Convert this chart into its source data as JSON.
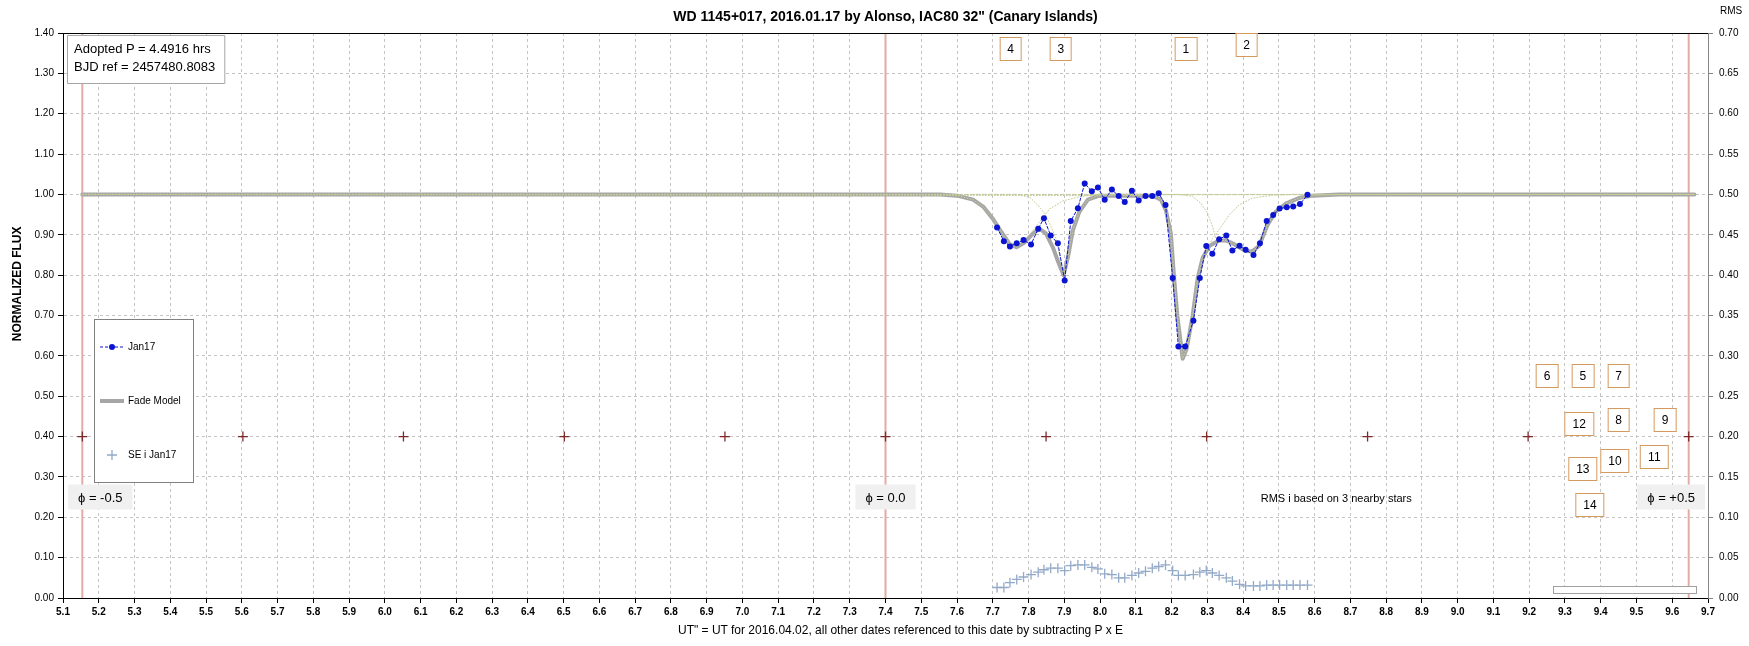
{
  "chart_data": {
    "type": "line",
    "title": "WD 1145+017, 2016.01.17 by Alonso, IAC80 32\" (Canary Islands)",
    "xlabel": "UT\" = UT for 2016.04.02, all other dates referenced to this date by subtracting P x E",
    "ylabel": "NORMALIZED FLUX",
    "y2label": "RMS",
    "x": [
      7.712,
      7.731,
      7.748,
      7.767,
      7.786,
      7.807,
      7.827,
      7.843,
      7.862,
      7.882,
      7.901,
      7.918,
      7.938,
      7.957,
      7.977,
      7.994,
      8.013,
      8.033,
      8.052,
      8.069,
      8.089,
      8.108,
      8.127,
      8.146,
      8.164,
      8.183,
      8.203,
      8.219,
      8.238,
      8.261,
      8.279,
      8.297,
      8.314,
      8.333,
      8.353,
      8.37,
      8.39,
      8.407,
      8.429,
      8.447,
      8.466,
      8.484,
      8.502,
      8.522,
      8.54,
      8.559,
      8.58
    ],
    "series": [
      {
        "name": "Jan17",
        "color": "#0a14d2",
        "marker": "circle",
        "line_style": "dashed",
        "values": [
          0.918,
          0.884,
          0.871,
          0.879,
          0.887,
          0.876,
          0.915,
          0.941,
          0.898,
          0.879,
          0.787,
          0.934,
          0.966,
          1.027,
          1.008,
          1.017,
          0.987,
          1.012,
          0.996,
          0.981,
          1.009,
          0.985,
          0.996,
          0.996,
          1.003,
          0.974,
          0.793,
          0.623,
          0.623,
          0.687,
          0.793,
          0.872,
          0.853,
          0.889,
          0.898,
          0.861,
          0.873,
          0.863,
          0.85,
          0.879,
          0.934,
          0.949,
          0.965,
          0.968,
          0.97,
          0.976,
          0.999
        ]
      },
      {
        "color": "#c5cc98",
        "marker": "none",
        "line_style": "dotted",
        "x": [
          5.154,
          7.552,
          7.6,
          7.645,
          7.673,
          7.7,
          7.724,
          7.747,
          7.766,
          7.789,
          7.812,
          7.831,
          7.859,
          7.896,
          7.942,
          7.99,
          9.662
        ],
        "values": [
          1.0,
          1.0,
          0.997,
          0.987,
          0.97,
          0.94,
          0.907,
          0.877,
          0.869,
          0.888,
          0.91,
          0.932,
          0.964,
          0.984,
          0.994,
          1.0,
          1.0
        ]
      },
      {
        "color": "#c5cc98",
        "marker": "none",
        "line_style": "dotted",
        "x": [
          5.154,
          7.766,
          7.803,
          7.826,
          7.845,
          7.863,
          7.877,
          7.898,
          7.91,
          7.924,
          7.942,
          7.966,
          8.0,
          9.662
        ],
        "values": [
          1.0,
          1.0,
          0.993,
          0.974,
          0.953,
          0.92,
          0.89,
          0.8,
          0.844,
          0.911,
          0.957,
          0.987,
          0.999,
          1.0
        ]
      },
      {
        "color": "#c5cc98",
        "marker": "none",
        "line_style": "dotted",
        "x": [
          5.154,
          8.147,
          8.17,
          8.184,
          8.198,
          8.207,
          8.216,
          8.231,
          8.242,
          8.259,
          8.273,
          8.287,
          8.314,
          8.338,
          8.361,
          8.389,
          8.426,
          8.482,
          8.538,
          9.662
        ],
        "values": [
          1.0,
          0.997,
          0.987,
          0.961,
          0.903,
          0.793,
          0.7,
          0.593,
          0.617,
          0.7,
          0.793,
          0.843,
          0.89,
          0.919,
          0.949,
          0.974,
          0.991,
          0.998,
          1.0,
          1.0
        ]
      },
      {
        "color": "#c5cc98",
        "marker": "none",
        "line_style": "dotted",
        "x": [
          5.154,
          8.221,
          8.259,
          8.282,
          8.301,
          8.315,
          8.324,
          8.333,
          8.352,
          8.37,
          8.389,
          8.407,
          8.426,
          8.445,
          8.468,
          8.491,
          8.519,
          8.556,
          8.593,
          8.668,
          9.662
        ],
        "values": [
          1.0,
          1.0,
          0.995,
          0.978,
          0.953,
          0.919,
          0.89,
          0.886,
          0.886,
          0.879,
          0.869,
          0.86,
          0.859,
          0.873,
          0.924,
          0.957,
          0.977,
          0.991,
          0.997,
          1.0,
          1.0
        ]
      },
      {
        "name": "Fade Model",
        "color": "#a6a6a6",
        "marker": "none",
        "line_style": "solid",
        "x": [
          5.154,
          7.552,
          7.6,
          7.645,
          7.673,
          7.7,
          7.724,
          7.747,
          7.766,
          7.789,
          7.812,
          7.831,
          7.849,
          7.868,
          7.882,
          7.898,
          7.91,
          7.924,
          7.942,
          7.966,
          7.998,
          8.147,
          8.17,
          8.184,
          8.198,
          8.207,
          8.216,
          8.231,
          8.242,
          8.259,
          8.273,
          8.287,
          8.306,
          8.333,
          8.352,
          8.37,
          8.389,
          8.407,
          8.426,
          8.445,
          8.468,
          8.491,
          8.519,
          8.556,
          8.593,
          8.668,
          9.662
        ],
        "values": [
          1.0,
          1.0,
          0.997,
          0.987,
          0.97,
          0.94,
          0.907,
          0.877,
          0.869,
          0.881,
          0.903,
          0.915,
          0.903,
          0.869,
          0.835,
          0.8,
          0.844,
          0.911,
          0.957,
          0.987,
          0.997,
          0.997,
          0.987,
          0.961,
          0.903,
          0.793,
          0.7,
          0.593,
          0.617,
          0.7,
          0.793,
          0.843,
          0.873,
          0.886,
          0.886,
          0.879,
          0.869,
          0.86,
          0.859,
          0.873,
          0.924,
          0.957,
          0.977,
          0.991,
          0.997,
          1.0,
          1.0
        ]
      },
      {
        "name": "SE i Jan17",
        "type": "scatter",
        "color": "#93a9c8",
        "marker": "cross",
        "axis": "y2",
        "values": [
          0.013,
          0.013,
          0.019,
          0.023,
          0.026,
          0.029,
          0.032,
          0.035,
          0.037,
          0.037,
          0.034,
          0.04,
          0.041,
          0.041,
          0.038,
          0.036,
          0.03,
          0.029,
          0.025,
          0.025,
          0.028,
          0.031,
          0.033,
          0.037,
          0.039,
          0.041,
          0.034,
          0.028,
          0.028,
          0.029,
          0.032,
          0.034,
          0.031,
          0.028,
          0.025,
          0.021,
          0.017,
          0.015,
          0.015,
          0.015,
          0.016,
          0.016,
          0.016,
          0.016,
          0.016,
          0.016,
          0.016
        ]
      },
      {
        "type": "scatter",
        "color": "#7f2a2a",
        "marker": "cross",
        "x": [
          5.154,
          5.603,
          6.052,
          6.502,
          6.951,
          7.4,
          7.849,
          8.298,
          8.748,
          9.197,
          9.646
        ],
        "values": [
          0.4,
          0.4,
          0.4,
          0.4,
          0.4,
          0.4,
          0.4,
          0.4,
          0.4,
          0.4,
          0.4
        ]
      }
    ],
    "xlim": [
      5.1,
      9.7
    ],
    "ylim": [
      0,
      1.4
    ],
    "y2lim": [
      0,
      0.7
    ],
    "xticks": [
      5.1,
      5.2,
      5.3,
      5.4,
      5.5,
      5.6,
      5.7,
      5.8,
      5.9,
      {
        "value": 6,
        "label": "6.0"
      },
      6.1,
      6.2,
      6.3,
      6.4,
      6.5,
      6.6,
      6.7,
      6.8,
      6.9,
      {
        "value": 7,
        "label": "7.0"
      },
      7.1,
      7.2,
      7.3,
      7.4,
      7.5,
      7.6,
      7.7,
      7.8,
      7.9,
      {
        "value": 8,
        "label": "8.0"
      },
      8.1,
      8.2,
      8.3,
      8.4,
      8.5,
      8.6,
      8.7,
      8.8,
      8.9,
      {
        "value": 9,
        "label": "9.0"
      },
      9.1,
      9.2,
      9.3,
      9.4,
      9.5,
      9.6,
      9.7
    ],
    "yticks": [
      {
        "value": 0,
        "label": "0.00"
      },
      {
        "value": 0.1,
        "label": "0.10"
      },
      {
        "value": 0.2,
        "label": "0.20"
      },
      {
        "value": 0.3,
        "label": "0.30"
      },
      {
        "value": 0.4,
        "label": "0.40"
      },
      {
        "value": 0.5,
        "label": "0.50"
      },
      {
        "value": 0.6,
        "label": "0.60"
      },
      {
        "value": 0.7,
        "label": "0.70"
      },
      {
        "value": 0.8,
        "label": "0.80"
      },
      {
        "value": 0.9,
        "label": "0.90"
      },
      {
        "value": 1,
        "label": "1.00"
      },
      {
        "value": 1.1,
        "label": "1.10"
      },
      {
        "value": 1.2,
        "label": "1.20"
      },
      {
        "value": 1.3,
        "label": "1.30"
      },
      {
        "value": 1.4,
        "label": "1.40"
      }
    ],
    "y2ticks": [
      {
        "value": 0,
        "label": "0.00"
      },
      0.05,
      {
        "value": 0.1,
        "label": "0.10"
      },
      0.15,
      {
        "value": 0.2,
        "label": "0.20"
      },
      0.25,
      {
        "value": 0.3,
        "label": "0.30"
      },
      0.35,
      {
        "value": 0.4,
        "label": "0.40"
      },
      0.45,
      {
        "value": 0.5,
        "label": "0.50"
      },
      0.55,
      {
        "value": 0.6,
        "label": "0.60"
      },
      0.65,
      {
        "value": 0.7,
        "label": "0.70"
      }
    ],
    "ref_lines": [
      {
        "axis": "x",
        "value": 5.154,
        "color": "#e4aaa6"
      },
      {
        "axis": "x",
        "value": 7.4,
        "color": "#e4aaa6"
      },
      {
        "axis": "x",
        "value": 9.646,
        "color": "#e4aaa6"
      }
    ],
    "annotations": [
      "Adopted P = 4.4916 hrs",
      "BJD ref = 2457480.8083",
      "RMS i based on 3 nearby stars",
      {
        "text": "ϕ = -0.5",
        "x": 5.154,
        "y": 0.25
      },
      {
        "text": "ϕ = 0.0",
        "x": 7.4,
        "y": 0.25
      },
      {
        "text": "ϕ = +0.5",
        "x": 9.646,
        "y": 0.25
      },
      {
        "text": "4",
        "x": 7.75,
        "y": 1.36
      },
      {
        "text": "3",
        "x": 7.89,
        "y": 1.36
      },
      {
        "text": "1",
        "x": 8.24,
        "y": 1.36
      },
      {
        "text": "2",
        "x": 8.41,
        "y": 1.37
      },
      {
        "text": "6",
        "x": 9.25,
        "y": 0.55
      },
      {
        "text": "5",
        "x": 9.35,
        "y": 0.55
      },
      {
        "text": "7",
        "x": 9.45,
        "y": 0.55
      },
      {
        "text": "12",
        "x": 9.34,
        "y": 0.43
      },
      {
        "text": "8",
        "x": 9.45,
        "y": 0.44
      },
      {
        "text": "9",
        "x": 9.58,
        "y": 0.44
      },
      {
        "text": "13",
        "x": 9.35,
        "y": 0.32
      },
      {
        "text": "10",
        "x": 9.44,
        "y": 0.34
      },
      {
        "text": "11",
        "x": 9.55,
        "y": 0.35
      },
      {
        "text": "14",
        "x": 9.37,
        "y": 0.23
      }
    ],
    "grid": true,
    "legend": "left"
  }
}
